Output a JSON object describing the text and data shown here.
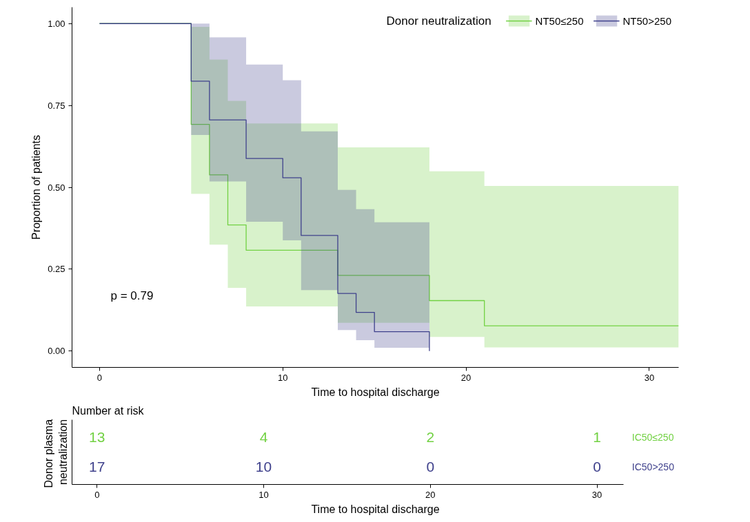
{
  "chart_data": [
    {
      "type": "step",
      "xlabel": "Time to hospital discharge",
      "ylabel": "Proportion of patients",
      "legend_title": "Donor neutralization",
      "legend": "top right",
      "grid": false,
      "xlim": [
        -1.5,
        31.6
      ],
      "xticks": [
        0,
        10,
        20,
        30
      ],
      "ylim": [
        -0.05,
        1.05
      ],
      "yticks": [
        {
          "value": 0,
          "label": "0.00"
        },
        {
          "value": 0.25,
          "label": "0.25"
        },
        {
          "value": 0.5,
          "label": "0.50"
        },
        {
          "value": 0.75,
          "label": "0.75"
        },
        {
          "value": 1,
          "label": "1.00"
        }
      ],
      "annotations": [
        "p = 0.79"
      ],
      "series": [
        {
          "name": "NT50≤250",
          "color": "#72d143",
          "x": [
            0,
            5,
            6,
            7,
            8,
            13,
            18,
            21,
            31.6
          ],
          "values": [
            1,
            0.692,
            0.538,
            0.385,
            0.308,
            0.231,
            0.154,
            0.077,
            0.077
          ],
          "lower": [
            null,
            0.48,
            0.325,
            0.193,
            0.136,
            0.086,
            0.043,
            0.011,
            0.011
          ],
          "upper": [
            null,
            0.99,
            0.89,
            0.764,
            0.695,
            0.622,
            0.549,
            0.504,
            0.504
          ]
        },
        {
          "name": "NT50>250",
          "color": "#3f418c",
          "x": [
            0,
            5,
            6,
            8,
            10,
            11,
            13,
            14,
            15,
            18
          ],
          "values": [
            1,
            0.824,
            0.706,
            0.588,
            0.529,
            0.353,
            0.176,
            0.118,
            0.059,
            0
          ],
          "lower": [
            null,
            0.66,
            0.518,
            0.395,
            0.338,
            0.186,
            0.064,
            0.033,
            0.01,
            0.01
          ],
          "upper": [
            null,
            1.0,
            0.958,
            0.875,
            0.827,
            0.671,
            0.492,
            0.433,
            0.393,
            0.393
          ]
        }
      ]
    },
    {
      "type": "heatmap",
      "title": "Number at risk",
      "xlabel": "Time to hospital discharge",
      "ylabel": "Donor  plasma\nneutralization",
      "categories": [
        "0",
        "10",
        "20",
        "30"
      ],
      "y_categories": [
        "IC50≤250",
        "IC50>250"
      ],
      "cells": [
        [
          13,
          4,
          2,
          1
        ],
        [
          17,
          10,
          0,
          0
        ]
      ],
      "cell_labels": [
        [
          "13",
          "4",
          "2",
          "1"
        ],
        [
          "17",
          "10",
          "0",
          "0"
        ]
      ],
      "colors": [
        "#72d143",
        "#3f418c"
      ]
    }
  ]
}
